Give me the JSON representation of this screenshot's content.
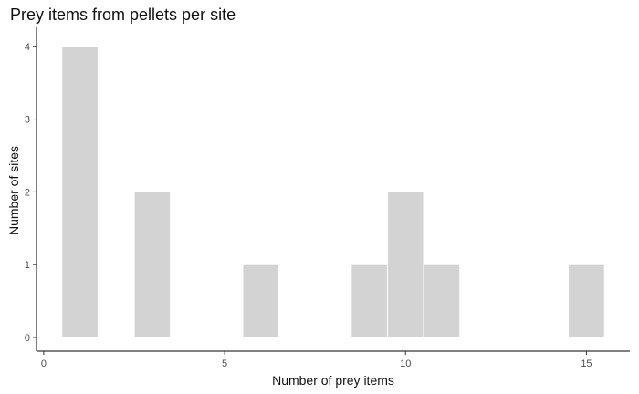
{
  "chart_data": {
    "type": "bar",
    "title": "Prey items from pellets per site",
    "xlabel": "Number of prey items",
    "ylabel": "Number of sites",
    "x": [
      1,
      3,
      6,
      9,
      10,
      11,
      15
    ],
    "values": [
      4,
      2,
      1,
      1,
      2,
      1,
      1
    ],
    "bin_width": 1,
    "xlim": [
      -0.2,
      16.2
    ],
    "ylim": [
      0,
      4.26
    ],
    "x_ticks": [
      0,
      5,
      10,
      15
    ],
    "y_ticks": [
      0,
      1,
      2,
      3,
      4
    ],
    "grid": false,
    "bar_color": "#d3d3d3",
    "bar_outline": "#ffffff"
  }
}
